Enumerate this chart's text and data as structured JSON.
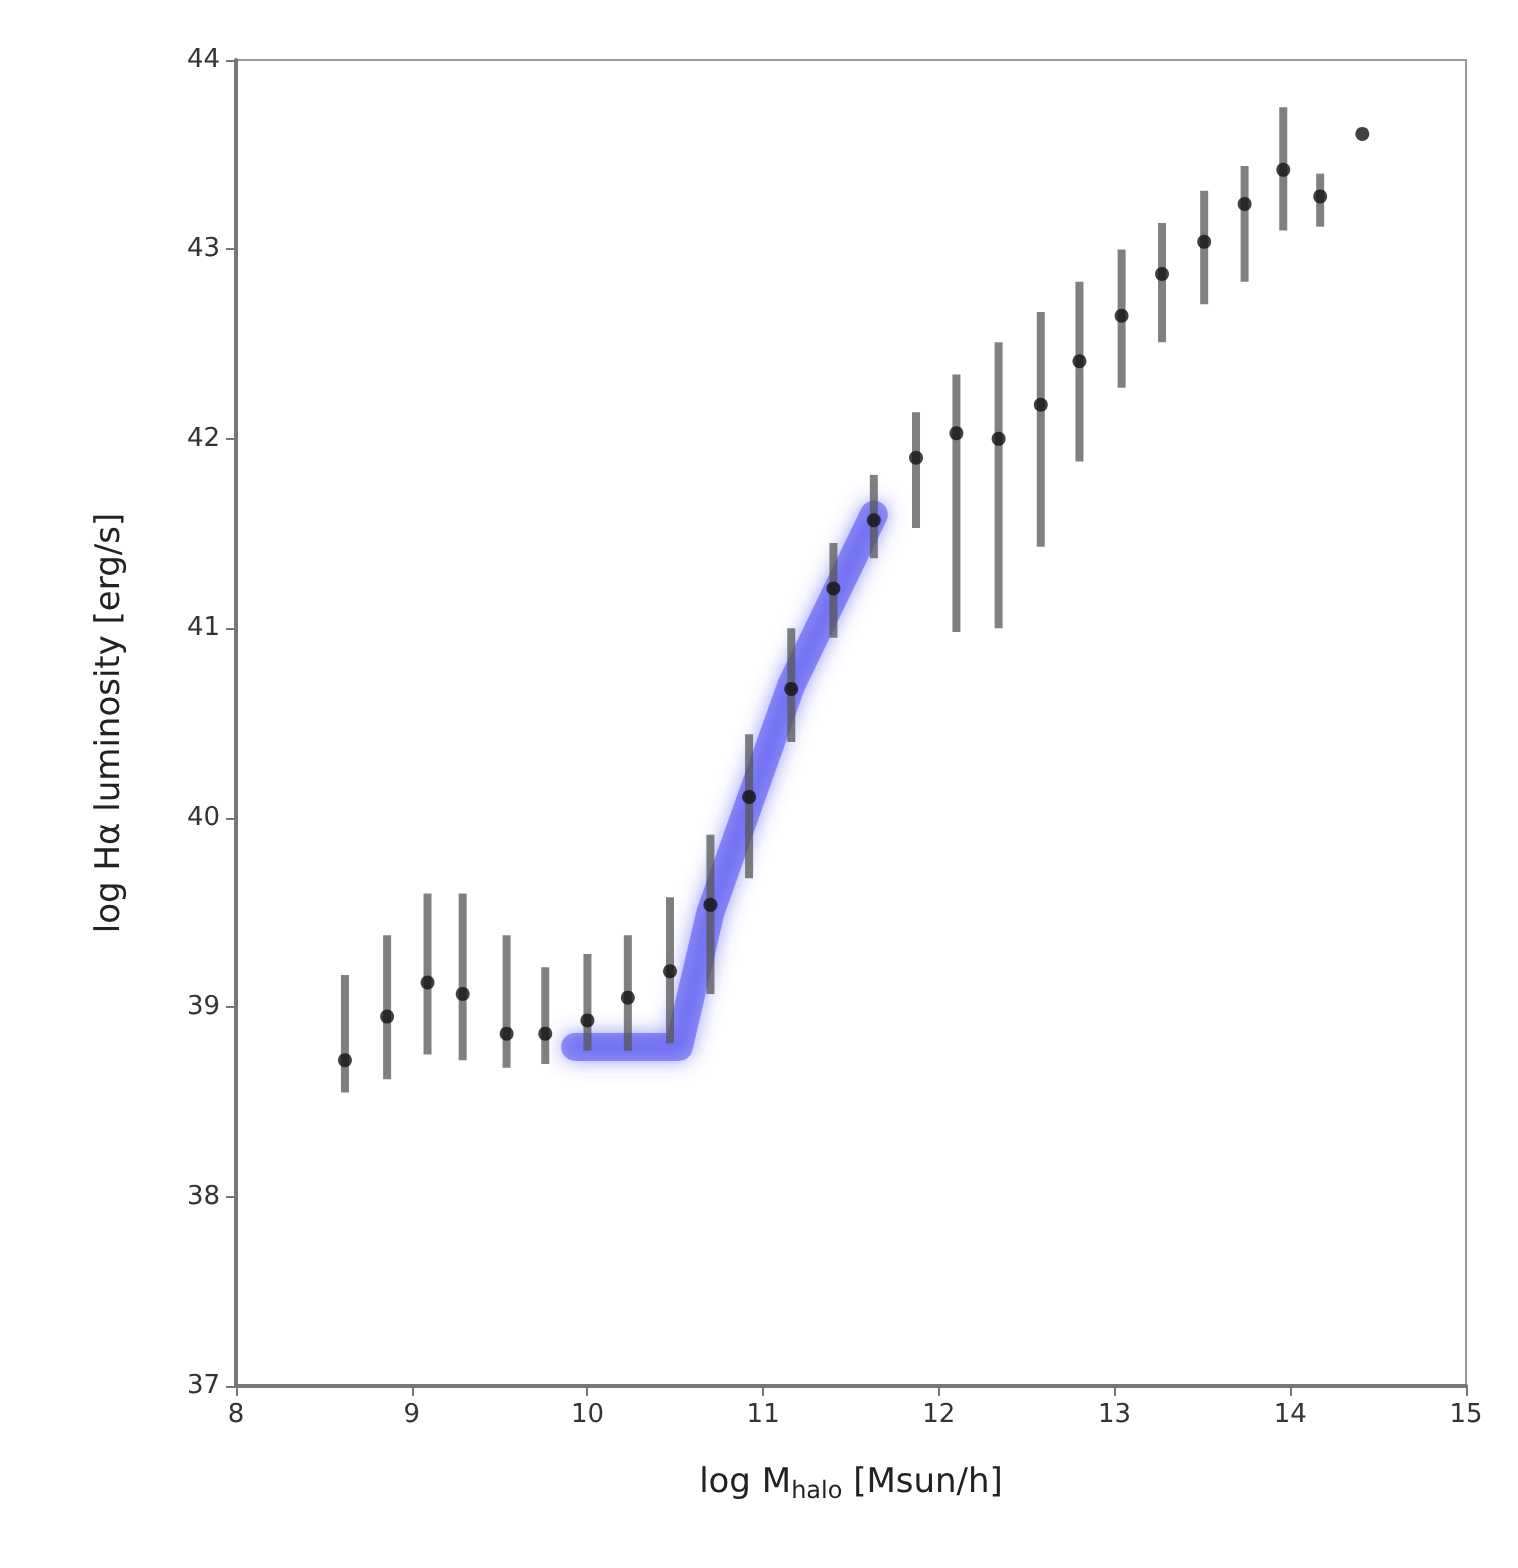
{
  "chart_data": {
    "type": "scatter",
    "xlabel": "log M$_{halo}$ [Msun/h]",
    "ylabel": "log Hα luminosity [erg/s]",
    "xlim": [
      8,
      15
    ],
    "xticks": [
      8,
      9,
      10,
      11,
      12,
      13,
      14,
      15
    ],
    "ylim": [
      37,
      44
    ],
    "yticks": [
      37,
      38,
      39,
      40,
      41,
      42,
      43,
      44
    ],
    "series": [
      {
        "type": "line",
        "marker": "none",
        "color": "#4a4af0",
        "x": [
          9.93,
          10.52,
          10.7,
          11.16,
          11.63
        ],
        "values": [
          38.79,
          38.79,
          39.5,
          40.7,
          41.6
        ]
      },
      {
        "marker": "circle",
        "color": "#111111",
        "x": [
          8.62,
          8.86,
          9.09,
          9.29,
          9.54,
          9.76,
          10.0,
          10.23,
          10.47,
          10.7,
          10.92,
          11.16,
          11.4,
          11.63,
          11.87,
          12.1,
          12.34,
          12.58,
          12.8,
          13.04,
          13.27,
          13.51,
          13.74,
          13.96,
          14.17,
          14.41
        ],
        "values": [
          38.72,
          38.95,
          39.13,
          39.07,
          38.86,
          38.86,
          38.93,
          39.05,
          39.19,
          39.54,
          40.11,
          40.68,
          41.21,
          41.57,
          41.9,
          42.03,
          42.0,
          42.18,
          42.41,
          42.65,
          42.87,
          43.04,
          43.24,
          43.42,
          43.28,
          43.61
        ],
        "errors": [
          [
            38.55,
            39.17
          ],
          [
            38.62,
            39.38
          ],
          [
            38.75,
            39.6
          ],
          [
            38.72,
            39.6
          ],
          [
            38.68,
            39.38
          ],
          [
            38.7,
            39.21
          ],
          [
            38.77,
            39.28
          ],
          [
            38.77,
            39.38
          ],
          [
            38.81,
            39.58
          ],
          [
            39.07,
            39.91
          ],
          [
            39.68,
            40.44
          ],
          [
            40.4,
            41.0
          ],
          [
            40.95,
            41.45
          ],
          [
            41.37,
            41.81
          ],
          [
            41.53,
            42.14
          ],
          [
            40.98,
            42.34
          ],
          [
            41.0,
            42.51
          ],
          [
            41.43,
            42.67
          ],
          [
            41.88,
            42.83
          ],
          [
            42.27,
            43.0
          ],
          [
            42.51,
            43.14
          ],
          [
            42.71,
            43.31
          ],
          [
            42.83,
            43.44
          ],
          [
            43.1,
            43.75
          ],
          [
            43.12,
            43.4
          ],
          null
        ]
      }
    ]
  }
}
